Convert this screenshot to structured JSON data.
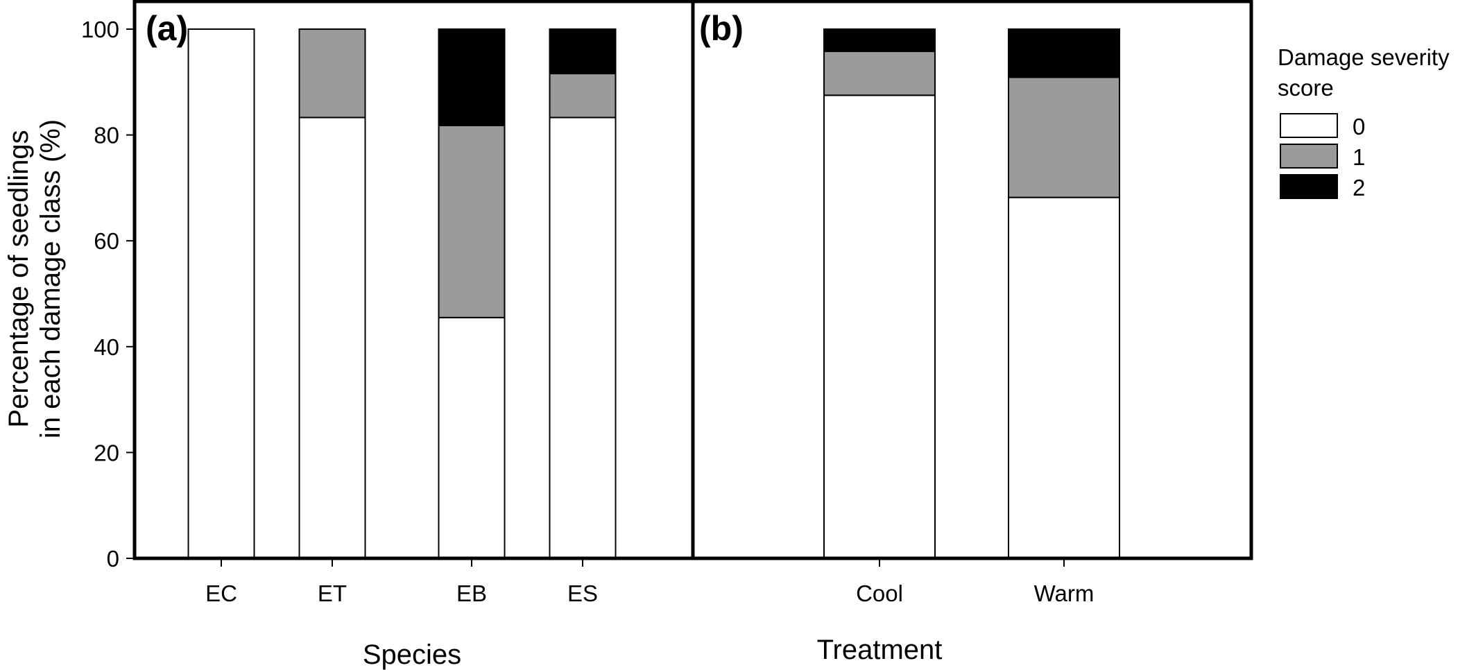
{
  "colors": {
    "score0": "#ffffff",
    "score1": "#9b9b9b",
    "score2": "#000000",
    "stroke": "#000000"
  },
  "y_axis_title_lines": [
    "Percentage of seedlings",
    "in each damage class (%)"
  ],
  "chart_data": [
    {
      "type": "bar",
      "stacked": true,
      "panel_label": "(a)",
      "xlabel": "Species",
      "ylabel": "Percentage of seedlings in each damage class (%)",
      "ylim": [
        0,
        100
      ],
      "yticks": [
        0,
        20,
        40,
        60,
        80,
        100
      ],
      "categories": [
        "EC",
        "ET",
        "EB",
        "ES"
      ],
      "series": [
        {
          "name": "0",
          "values": [
            100,
            83.3,
            45.5,
            83.3
          ]
        },
        {
          "name": "1",
          "values": [
            0,
            16.7,
            36.3,
            8.3
          ]
        },
        {
          "name": "2",
          "values": [
            0,
            0,
            18.2,
            8.4
          ]
        }
      ]
    },
    {
      "type": "bar",
      "stacked": true,
      "panel_label": "(b)",
      "xlabel": "Treatment",
      "ylim": [
        0,
        100
      ],
      "categories": [
        "Cool",
        "Warm"
      ],
      "series": [
        {
          "name": "0",
          "values": [
            87.5,
            68.2
          ]
        },
        {
          "name": "1",
          "values": [
            8.3,
            22.7
          ]
        },
        {
          "name": "2",
          "values": [
            4.2,
            9.1
          ]
        }
      ]
    }
  ],
  "legend": {
    "title_lines": [
      "Damage severity",
      "score"
    ],
    "placement": "right",
    "entries": [
      "0",
      "1",
      "2"
    ]
  }
}
